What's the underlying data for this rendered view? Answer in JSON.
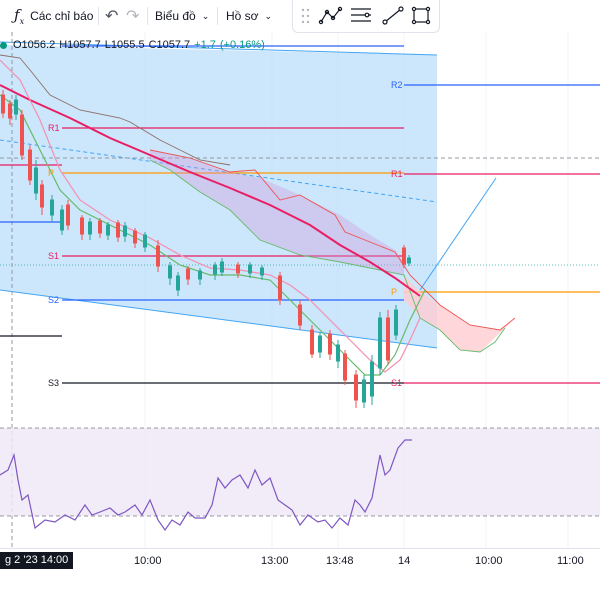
{
  "toolbar": {
    "indicators_label": "Các chỉ báo",
    "chart_label": "Biểu đồ",
    "profile_label": "Hồ sơ"
  },
  "legend": {
    "open": "O1056.2",
    "high": "H1057.7",
    "low": "L1055.5",
    "close": "C1057.7",
    "change": "+1.7",
    "change_pct": "(+0.16%)",
    "up_color": "#089981"
  },
  "pivots": {
    "r2": "R2",
    "r1": "R1",
    "p": "P",
    "s1": "S1",
    "s2": "S2",
    "s3": "S3"
  },
  "time_axis": {
    "current": "g 2 '23  14:00",
    "labels": [
      "10:00",
      "13:00",
      "13:48",
      "14",
      "10:00",
      "11:00"
    ]
  },
  "colors": {
    "r_color": "#e91e63",
    "p_color": "#ff9800",
    "s_color": "#2962ff",
    "channel_fill": "#bbdefb",
    "rsi_fill": "#ede7f6"
  }
}
